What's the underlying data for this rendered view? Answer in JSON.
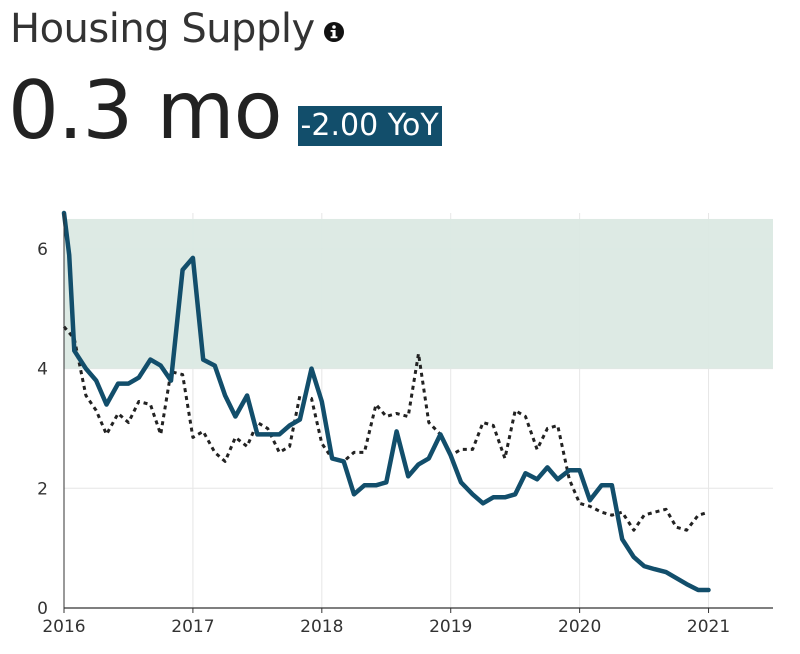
{
  "header": {
    "title": "Housing Supply",
    "info_icon": "info-circle-icon",
    "metric": "0.3 mo",
    "yoy": "-2.00 YoY"
  },
  "colors": {
    "primary_line": "#124e6b",
    "band_fill": "#dbe9e3",
    "badge": "#124e6b",
    "dotted_line": "#222222"
  },
  "chart_data": {
    "type": "line",
    "x_ticks": [
      "2016",
      "2017",
      "2018",
      "2019",
      "2020",
      "2021"
    ],
    "y_ticks": [
      "0",
      "2",
      "4",
      "6"
    ],
    "xlim": [
      2016,
      2021.5
    ],
    "ylim": [
      0,
      6.6
    ],
    "band": [
      4,
      6.5
    ],
    "grid": true,
    "series": [
      {
        "style": "solid",
        "x": [
          2016.0,
          2016.04,
          2016.08,
          2016.17,
          2016.25,
          2016.33,
          2016.42,
          2016.5,
          2016.58,
          2016.67,
          2016.75,
          2016.83,
          2016.92,
          2017.0,
          2017.08,
          2017.17,
          2017.25,
          2017.33,
          2017.42,
          2017.5,
          2017.58,
          2017.67,
          2017.75,
          2017.83,
          2017.92,
          2018.0,
          2018.08,
          2018.17,
          2018.25,
          2018.33,
          2018.42,
          2018.5,
          2018.58,
          2018.67,
          2018.75,
          2018.83,
          2018.92,
          2019.0,
          2019.08,
          2019.17,
          2019.25,
          2019.33,
          2019.42,
          2019.5,
          2019.58,
          2019.67,
          2019.75,
          2019.83,
          2019.92,
          2020.0,
          2020.08,
          2020.17,
          2020.25,
          2020.33,
          2020.42,
          2020.5,
          2020.58,
          2020.67,
          2020.75,
          2020.83,
          2020.92,
          2021.0
        ],
        "y": [
          6.6,
          5.9,
          4.3,
          4.0,
          3.8,
          3.4,
          3.75,
          3.75,
          3.85,
          4.15,
          4.05,
          3.8,
          5.65,
          5.85,
          4.15,
          4.05,
          3.55,
          3.2,
          3.55,
          2.9,
          2.9,
          2.9,
          3.05,
          3.15,
          4.0,
          3.45,
          2.5,
          2.45,
          1.9,
          2.05,
          2.05,
          2.1,
          2.95,
          2.2,
          2.4,
          2.5,
          2.9,
          2.55,
          2.1,
          1.9,
          1.75,
          1.85,
          1.85,
          1.9,
          2.25,
          2.15,
          2.35,
          2.15,
          2.3,
          2.3,
          1.8,
          2.05,
          2.05,
          1.15,
          0.85,
          0.7,
          0.65,
          0.6,
          0.5,
          0.4,
          0.3,
          0.3
        ]
      },
      {
        "style": "dotted",
        "x": [
          2016.0,
          2016.08,
          2016.17,
          2016.25,
          2016.33,
          2016.42,
          2016.5,
          2016.58,
          2016.67,
          2016.75,
          2016.83,
          2016.92,
          2017.0,
          2017.08,
          2017.17,
          2017.25,
          2017.33,
          2017.42,
          2017.5,
          2017.58,
          2017.67,
          2017.75,
          2017.83,
          2017.92,
          2018.0,
          2018.08,
          2018.17,
          2018.25,
          2018.33,
          2018.42,
          2018.5,
          2018.58,
          2018.67,
          2018.75,
          2018.83,
          2018.92,
          2019.0,
          2019.08,
          2019.17,
          2019.25,
          2019.33,
          2019.42,
          2019.5,
          2019.58,
          2019.67,
          2019.75,
          2019.83,
          2019.92,
          2020.0,
          2020.08,
          2020.17,
          2020.25,
          2020.33,
          2020.42,
          2020.5,
          2020.58,
          2020.67,
          2020.75,
          2020.83,
          2020.92,
          2021.0
        ],
        "y": [
          4.7,
          4.5,
          3.55,
          3.3,
          2.9,
          3.25,
          3.1,
          3.45,
          3.4,
          2.9,
          3.95,
          3.9,
          2.85,
          2.95,
          2.6,
          2.45,
          2.85,
          2.7,
          3.1,
          3.0,
          2.6,
          2.7,
          3.55,
          3.5,
          2.75,
          2.5,
          2.45,
          2.6,
          2.6,
          3.4,
          3.2,
          3.25,
          3.2,
          4.25,
          3.1,
          2.9,
          2.55,
          2.65,
          2.65,
          3.1,
          3.05,
          2.5,
          3.3,
          3.2,
          2.65,
          3.0,
          3.05,
          2.15,
          1.75,
          1.7,
          1.6,
          1.55,
          1.6,
          1.3,
          1.55,
          1.6,
          1.65,
          1.35,
          1.3,
          1.55,
          1.6
        ]
      }
    ]
  }
}
